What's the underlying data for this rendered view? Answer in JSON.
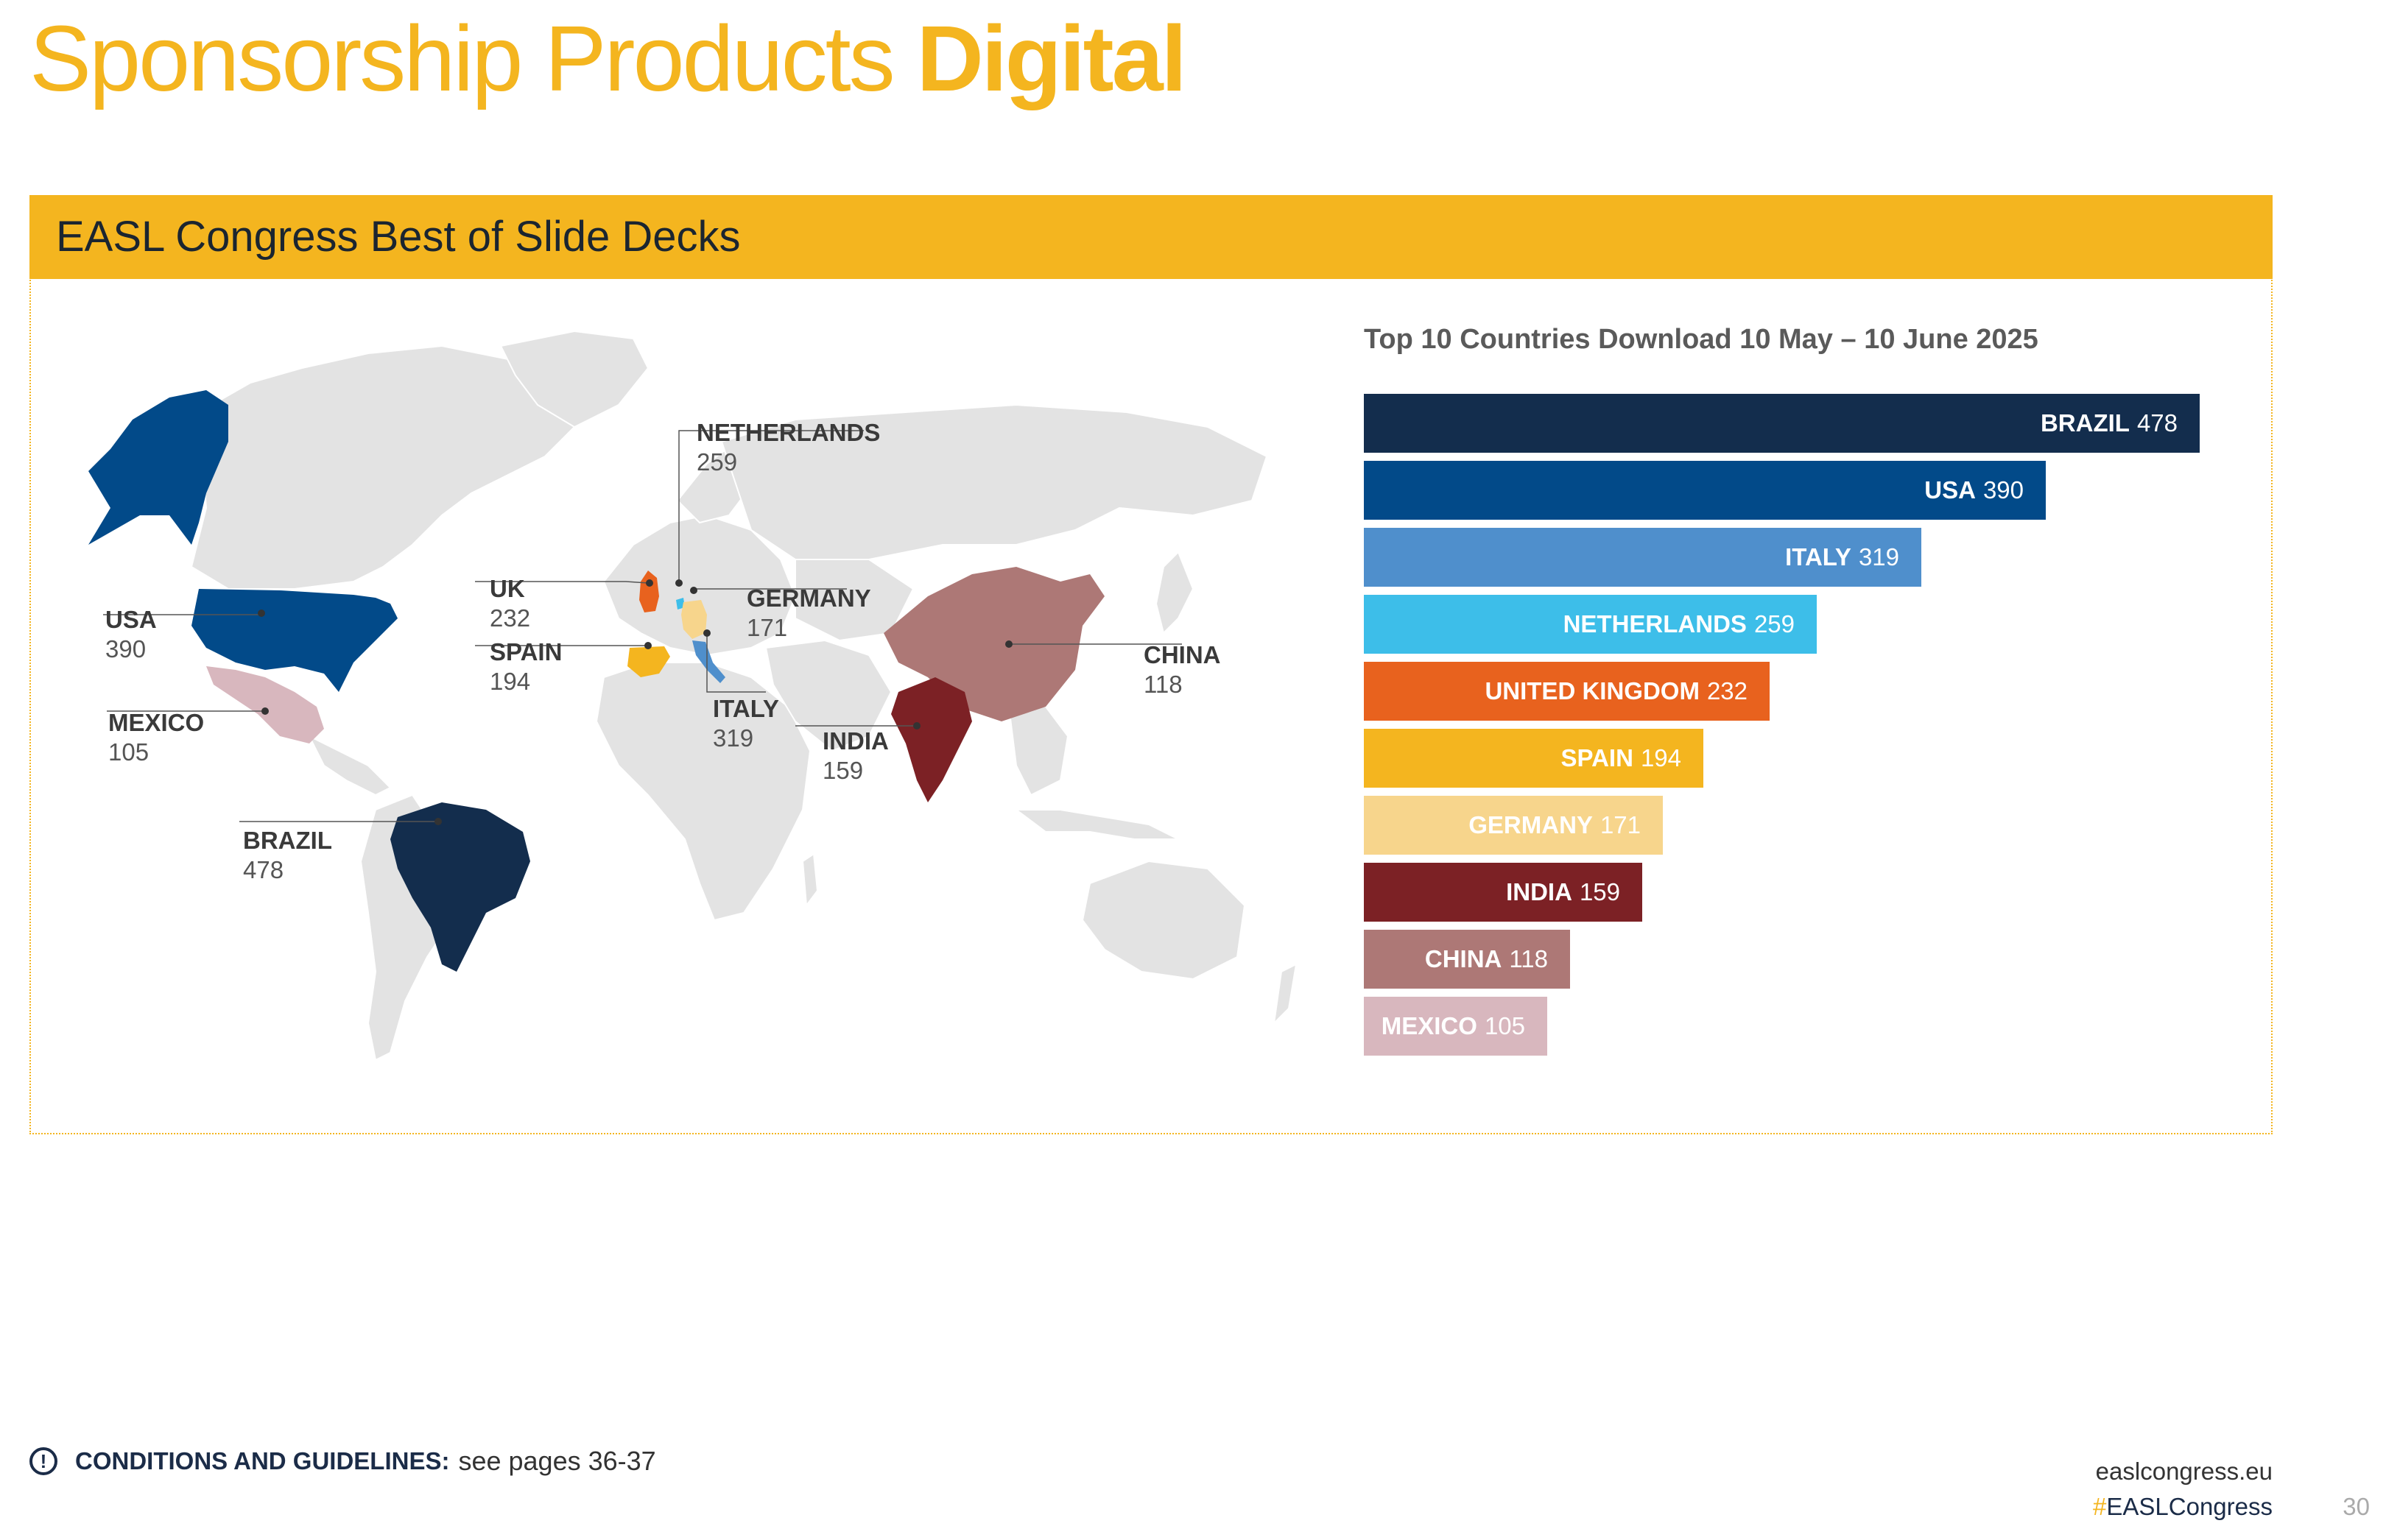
{
  "page": {
    "title_light": "Sponsorship Products",
    "title_bold": "Digital",
    "panel_title": "EASL Congress Best of Slide Decks"
  },
  "colors": {
    "accent": "#F4B51F",
    "land": "#E3E3E3"
  },
  "map_labels": [
    {
      "key": "usa",
      "name": "USA",
      "value": "390",
      "color": "#024A89"
    },
    {
      "key": "mexico",
      "name": "MEXICO",
      "value": "105",
      "color": "#D8B7BE"
    },
    {
      "key": "brazil",
      "name": "BRAZIL",
      "value": "478",
      "color": "#132D4D"
    },
    {
      "key": "uk",
      "name": "UK",
      "value": "232",
      "color": "#E8621E"
    },
    {
      "key": "spain",
      "name": "SPAIN",
      "value": "194",
      "color": "#F4B51F"
    },
    {
      "key": "netherlands",
      "name": "NETHERLANDS",
      "value": "259",
      "color": "#3DBEE9"
    },
    {
      "key": "germany",
      "name": "GERMANY",
      "value": "171",
      "color": "#F7D58C"
    },
    {
      "key": "italy",
      "name": "ITALY",
      "value": "319",
      "color": "#4F8FCC"
    },
    {
      "key": "india",
      "name": "INDIA",
      "value": "159",
      "color": "#7C2125"
    },
    {
      "key": "china",
      "name": "CHINA",
      "value": "118",
      "color": "#AD7876"
    }
  ],
  "chart_data": {
    "type": "bar",
    "orientation": "horizontal",
    "title": "Top 10 Countries Download 10 May – 10 June 2025",
    "categories": [
      "BRAZIL",
      "USA",
      "ITALY",
      "NETHERLANDS",
      "UNITED KINGDOM",
      "SPAIN",
      "GERMANY",
      "INDIA",
      "CHINA",
      "MEXICO"
    ],
    "values": [
      478,
      390,
      319,
      259,
      232,
      194,
      171,
      159,
      118,
      105
    ],
    "value_labels": [
      "478",
      "390",
      "319",
      "259",
      "232",
      "194",
      "171",
      "159",
      "118",
      "105"
    ],
    "colors": [
      "#132D4D",
      "#024A89",
      "#4F8FCC",
      "#3DBEE9",
      "#E8621E",
      "#F4B51F",
      "#F7D58C",
      "#7C2125",
      "#AD7876",
      "#D8B7BE"
    ],
    "xlim": [
      0,
      478
    ],
    "xlabel": "",
    "ylabel": ""
  },
  "footer": {
    "conditions_label": "CONDITIONS AND GUIDELINES:",
    "conditions_text": "see pages 36-37",
    "site": "easlcongress.eu",
    "hashtag_symbol": "#",
    "hashtag_text": "EASLCongress",
    "page_number": "30"
  }
}
